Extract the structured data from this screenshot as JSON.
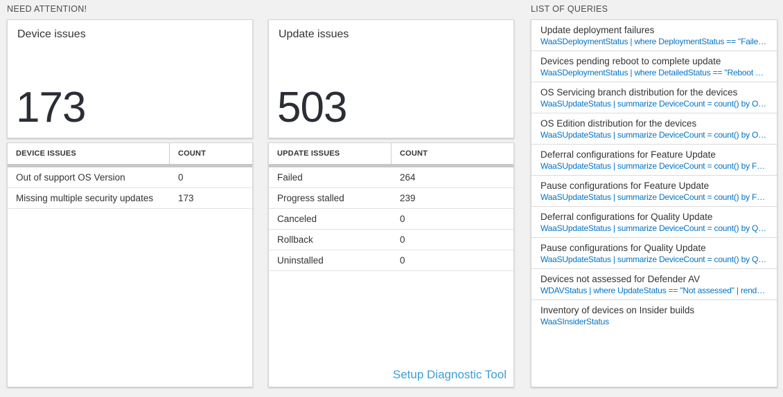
{
  "colors": {
    "page_bg": "#f1f1f1",
    "card_bg": "#ffffff",
    "card_border": "#d6d6d6",
    "table_scrollbar_gray": "#c7c7c7",
    "query_code_blue": "#0072c6",
    "diag_link_blue": "#3a9dd9",
    "big_number_color": "#2b2e35",
    "text_dark": "#333333"
  },
  "need_attention": {
    "label": "NEED ATTENTION!",
    "device_card": {
      "title": "Device issues",
      "count": "173",
      "table": {
        "header_label": "DEVICE ISSUES",
        "header_count": "COUNT",
        "rows": [
          {
            "label": "Out of support OS Version",
            "count": "0"
          },
          {
            "label": "Missing multiple security updates",
            "count": "173"
          }
        ]
      }
    },
    "update_card": {
      "title": "Update issues",
      "count": "503",
      "table": {
        "header_label": "UPDATE ISSUES",
        "header_count": "COUNT",
        "rows": [
          {
            "label": "Failed",
            "count": "264"
          },
          {
            "label": "Progress stalled",
            "count": "239"
          },
          {
            "label": "Canceled",
            "count": "0"
          },
          {
            "label": "Rollback",
            "count": "0"
          },
          {
            "label": "Uninstalled",
            "count": "0"
          }
        ]
      },
      "diagnostic_link": "Setup Diagnostic Tool"
    }
  },
  "queries": {
    "label": "LIST OF QUERIES",
    "items": [
      {
        "title": "Update deployment failures",
        "query": "WaaSDeploymentStatus | where DeploymentStatus == \"Failed\" |..."
      },
      {
        "title": "Devices pending reboot to complete update",
        "query": "WaaSDeploymentStatus | where DetailedStatus == \"Reboot pend..."
      },
      {
        "title": "OS Servicing branch distribution for the devices",
        "query": "WaaSUpdateStatus | summarize DeviceCount = count() by OSSer..."
      },
      {
        "title": "OS Edition distribution for the devices",
        "query": "WaaSUpdateStatus | summarize DeviceCount = count() by OSEdit..."
      },
      {
        "title": "Deferral configurations for Feature Update",
        "query": "WaaSUpdateStatus | summarize DeviceCount = count() by Featur..."
      },
      {
        "title": "Pause configurations for Feature Update",
        "query": "WaaSUpdateStatus | summarize DeviceCount = count() by Featur..."
      },
      {
        "title": "Deferral configurations for Quality Update",
        "query": "WaaSUpdateStatus | summarize DeviceCount = count() by Qualit..."
      },
      {
        "title": "Pause configurations for Quality Update",
        "query": "WaaSUpdateStatus | summarize DeviceCount = count() by Qualit..."
      },
      {
        "title": "Devices not assessed for Defender AV",
        "query": "WDAVStatus | where UpdateStatus == \"Not assessed\" | render ta..."
      },
      {
        "title": "Inventory of devices on Insider builds",
        "query": "WaaSInsiderStatus"
      }
    ]
  }
}
